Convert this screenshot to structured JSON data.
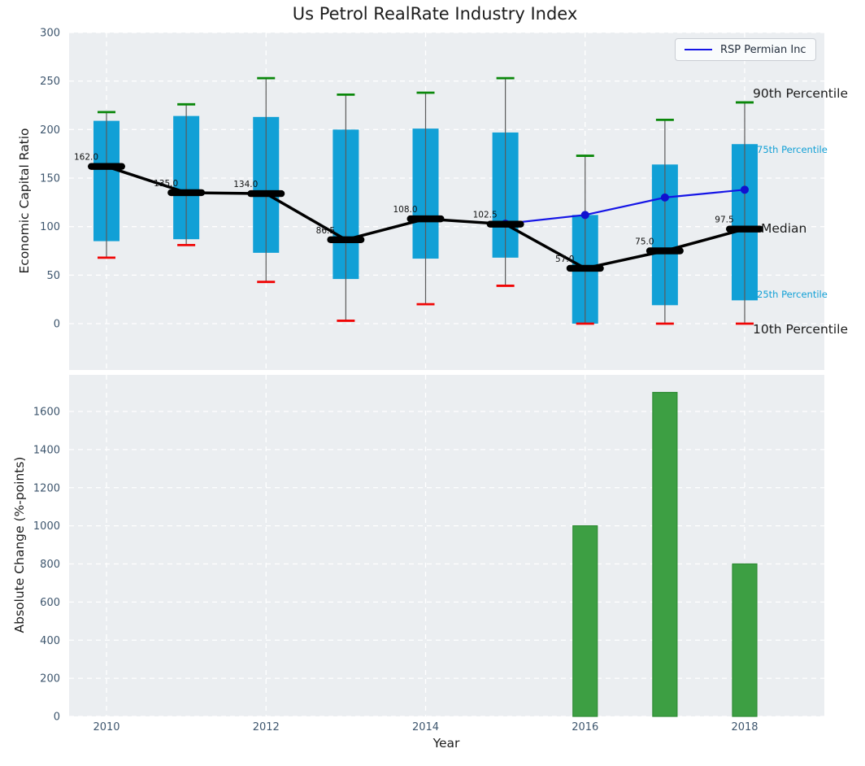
{
  "title": "Us Petrol RealRate Industry Index",
  "legend": {
    "label": "RSP Permian Inc"
  },
  "annotations": {
    "p90": "90th Percentile",
    "p75": "75th Percentile",
    "median": "Median",
    "p25": "25th Percentile",
    "p10": "10th Percentile"
  },
  "colors": {
    "plot_bg": "#ebeef1",
    "grid": "#ffffff",
    "tick": "#3e566e",
    "box": "#11a0d6",
    "whisker": "#5a5a5a",
    "cap_high": "#0a870a",
    "cap_low": "#f00505",
    "median": "#000000",
    "company_line": "#1515e6",
    "company_dot": "#1111cf",
    "bar_green": "#3d9f43",
    "bar_green_edge": "#2f8c35",
    "annotation_cyan": "#11a0d6",
    "text_dark": "#1c1c1c",
    "value_label": "#111111"
  },
  "chart_data": [
    {
      "type": "box-percentile+line",
      "title": "Us Petrol RealRate Industry Index",
      "ylabel": "Economic Capital Ratio",
      "ylim": [
        -48,
        300
      ],
      "yticks": [
        0,
        50,
        100,
        150,
        200,
        250,
        300
      ],
      "grid": true,
      "legend_position": "upper right",
      "categories": [
        2010,
        2011,
        2012,
        2013,
        2014,
        2015,
        2016,
        2017,
        2018
      ],
      "p90": [
        218,
        226,
        253,
        236,
        238,
        253,
        173,
        210,
        228
      ],
      "p75": [
        209,
        214,
        213,
        200,
        201,
        197,
        112,
        164,
        185
      ],
      "median": [
        162,
        135,
        134,
        86.5,
        108,
        102.5,
        57,
        75,
        97.5
      ],
      "median_labels": [
        "162.0",
        "135.0",
        "134.0",
        "86.5",
        "108.0",
        "102.5",
        "57.0",
        "75.0",
        "97.5"
      ],
      "p25": [
        85,
        87,
        73,
        46,
        67,
        68,
        0,
        19,
        24
      ],
      "p10": [
        68,
        81,
        43,
        3,
        20,
        39,
        0,
        0,
        0
      ],
      "series": [
        {
          "name": "RSP Permian Inc",
          "x": [
            2015,
            2016,
            2017,
            2018
          ],
          "values": [
            103,
            112,
            130,
            138
          ]
        }
      ]
    },
    {
      "type": "bar",
      "ylabel": "Absolute Change (%-points)",
      "xlabel": "Year",
      "ylim": [
        0,
        1790
      ],
      "yticks": [
        0,
        200,
        400,
        600,
        800,
        1000,
        1200,
        1400,
        1600
      ],
      "xticks": [
        2010,
        2012,
        2014,
        2016,
        2018
      ],
      "grid": true,
      "bars": {
        "x": [
          2016,
          2017,
          2018
        ],
        "values": [
          1000,
          1700,
          800
        ]
      }
    }
  ]
}
